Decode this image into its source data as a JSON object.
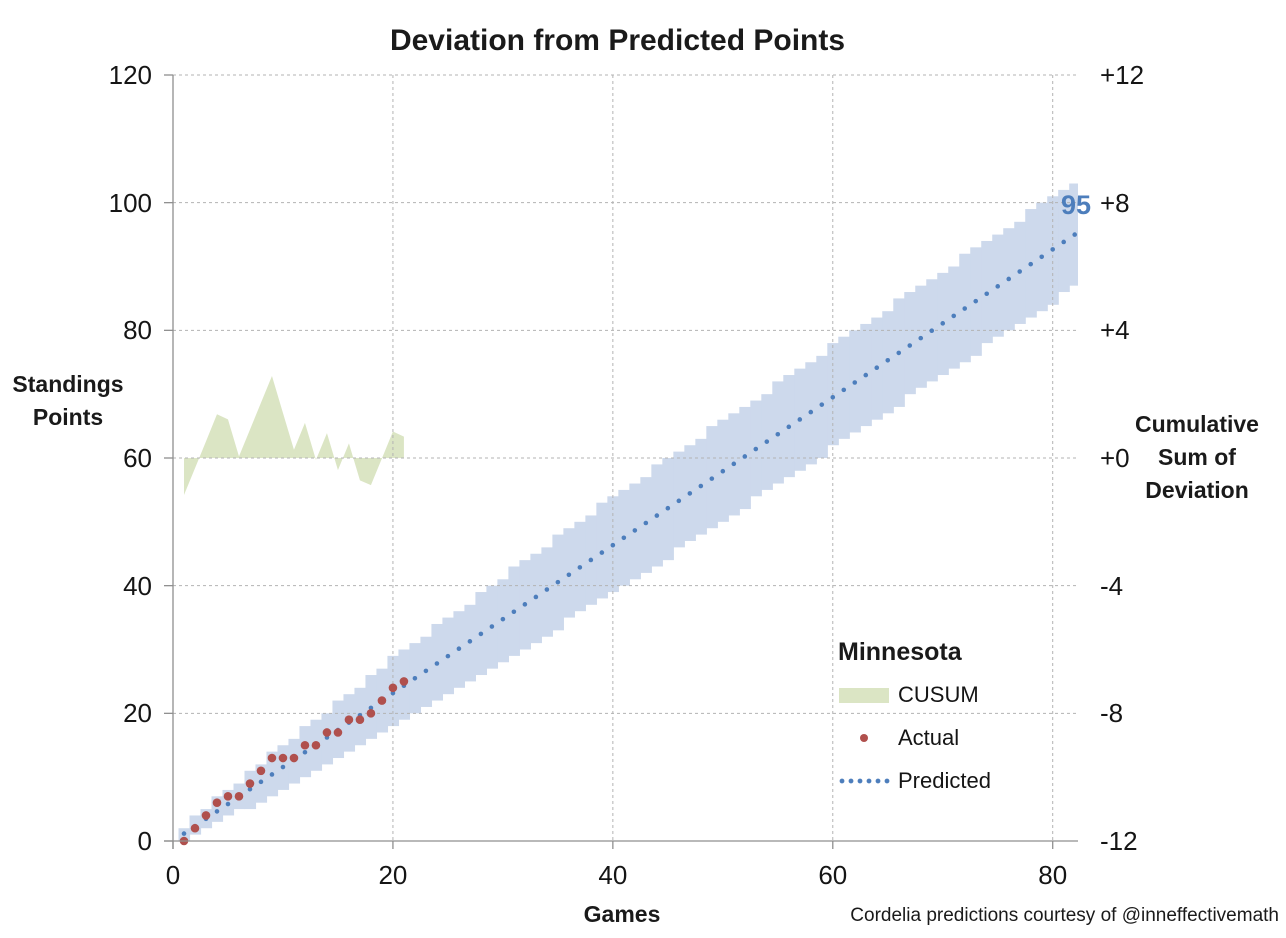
{
  "title": "Deviation from Predicted Points",
  "caption": "Cordelia predictions courtesy of @inneffectivemath",
  "colors": {
    "band": "#cdd9ec",
    "cusum_green": "#dbe5c4",
    "actual_red": "#b0504d",
    "predicted_blue": "#4d7ebc",
    "gridline": "#b3b3b3",
    "axis_line": "#8f8f8f",
    "text": "#1a1a1a"
  },
  "legend": {
    "title": "Minnesota",
    "items": [
      {
        "label": "CUSUM",
        "swatch": "green-area-swatch"
      },
      {
        "label": "Actual",
        "swatch": "red-dot-swatch"
      },
      {
        "label": "Predicted",
        "swatch": "blue-dotted-line-swatch"
      }
    ]
  },
  "annotations": {
    "predicted_final_label": "95"
  },
  "chart_data": {
    "type": "combo",
    "title": "Deviation from Predicted Points",
    "x_axis": {
      "label": "Games",
      "ticks": [
        0,
        20,
        40,
        60,
        80
      ],
      "range": [
        0,
        82.3
      ]
    },
    "y_axis_left": {
      "label": "Standings Points",
      "ticks": [
        0,
        20,
        40,
        60,
        80,
        100,
        120
      ],
      "range": [
        0,
        120
      ]
    },
    "y_axis_right": {
      "label": "Cumulative Sum of Deviation",
      "tick_labels": [
        "-12",
        "-8",
        "-4",
        "+0",
        "+4",
        "+8",
        "+12"
      ],
      "tick_values": [
        -12,
        -8,
        -4,
        0,
        4,
        8,
        12
      ],
      "range": [
        -12,
        12
      ]
    },
    "grid": "dashed, every 20 points / 4 deviation units / 20 games",
    "legend_position": "inside lower-right",
    "series": {
      "actual": {
        "name": "Actual",
        "type": "scatter",
        "games": [
          1,
          2,
          3,
          4,
          5,
          6,
          7,
          8,
          9,
          10,
          11,
          12,
          13,
          14,
          15,
          16,
          17,
          18,
          19,
          20,
          21
        ],
        "points": [
          0,
          2,
          4,
          6,
          7,
          7,
          9,
          11,
          13,
          13,
          13,
          15,
          15,
          17,
          17,
          19,
          19,
          20,
          22,
          24,
          25
        ]
      },
      "predicted": {
        "name": "Predicted",
        "type": "dotted-line",
        "total_games": 82,
        "final_points": 95,
        "points_per_game": 1.1585
      },
      "cusum": {
        "name": "CUSUM",
        "type": "area",
        "axis": "right",
        "games": [
          1,
          2,
          3,
          4,
          5,
          6,
          7,
          8,
          9,
          10,
          11,
          12,
          13,
          14,
          15,
          16,
          17,
          18,
          19,
          20,
          21
        ],
        "values": [
          -1.16,
          -0.32,
          0.52,
          1.37,
          1.21,
          0.05,
          0.89,
          1.73,
          2.57,
          1.41,
          0.26,
          1.1,
          -0.06,
          0.78,
          -0.38,
          0.46,
          -0.7,
          -0.85,
          -0.01,
          0.83,
          0.67
        ]
      },
      "prediction_band": {
        "name": "prediction interval band",
        "type": "stepped-band",
        "center": "predicted series",
        "half_width_anchors": [
          [
            1,
            1.3
          ],
          [
            8,
            2.9
          ],
          [
            20,
            5.4
          ],
          [
            40,
            7.6
          ],
          [
            60,
            8.0
          ],
          [
            82,
            8.25
          ]
        ]
      }
    }
  }
}
